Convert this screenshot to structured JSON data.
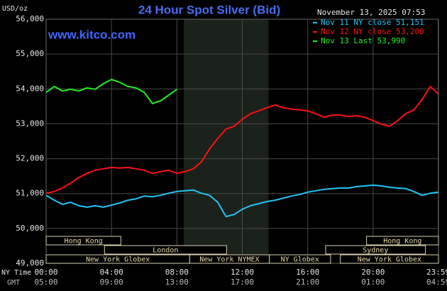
{
  "chart_data": {
    "type": "line",
    "title": "24 Hour Spot Silver (Bid)",
    "timestamp": "November 13, 2025 07:53",
    "watermark": "www.kitco.com",
    "y_label": "USD/oz",
    "x_row_labels": [
      "NY Time",
      "GMT"
    ],
    "xlim": [
      0,
      24
    ],
    "xticks": [
      {
        "value": 0,
        "label": "00:00"
      },
      {
        "value": 4,
        "label": "04:00"
      },
      {
        "value": 8,
        "label": "08:00"
      },
      {
        "value": 12,
        "label": "12:00"
      },
      {
        "value": 16,
        "label": "16:00"
      },
      {
        "value": 20,
        "label": "20:00"
      },
      {
        "value": 23.983,
        "label": "23:59"
      }
    ],
    "gmt_labels": [
      "05:00",
      "09:00",
      "13:00",
      "17:00",
      "21:00",
      "01:00",
      "04:59"
    ],
    "ylim": [
      49000,
      56000
    ],
    "yticks": [
      {
        "value": 49000,
        "label": "49,000"
      },
      {
        "value": 50000,
        "label": "50,000"
      },
      {
        "value": 51000,
        "label": "51,000"
      },
      {
        "value": 52000,
        "label": "52,000"
      },
      {
        "value": 53000,
        "label": "53,000"
      },
      {
        "value": 54000,
        "label": "54,000"
      },
      {
        "value": 55000,
        "label": "55,000"
      },
      {
        "value": 56000,
        "label": "56,000"
      }
    ],
    "grid": true,
    "shaded_region": [
      8.42,
      13.6
    ],
    "sessions": [
      {
        "name": "Hong Kong",
        "start": 0,
        "end": 4.57,
        "row": 0
      },
      {
        "name": "Hong Kong",
        "start": 19.6,
        "end": 24,
        "row": 0
      },
      {
        "name": "London",
        "start": 3.57,
        "end": 11.04,
        "row": 1
      },
      {
        "name": "Sydney",
        "start": 17.1,
        "end": 23.2,
        "row": 1
      },
      {
        "name": "New York Globex",
        "start": 0,
        "end": 8.78,
        "row": 2
      },
      {
        "name": "New York NYMEX",
        "start": 8.78,
        "end": 13.65,
        "row": 2
      },
      {
        "name": "NY Globex",
        "start": 13.65,
        "end": 17.4,
        "row": 2
      },
      {
        "name": "New York Globex",
        "start": 18,
        "end": 24,
        "row": 2
      }
    ],
    "x": [
      0,
      0.5,
      1,
      1.5,
      2,
      2.5,
      3,
      3.5,
      4,
      4.5,
      5,
      5.5,
      6,
      6.5,
      7,
      7.5,
      8,
      8.5,
      9,
      9.5,
      10,
      10.5,
      11,
      11.5,
      12,
      12.5,
      13,
      13.5,
      14,
      14.5,
      15,
      15.5,
      16,
      16.5,
      17,
      17.5,
      18,
      18.5,
      19,
      19.5,
      20,
      20.5,
      21,
      21.5,
      22,
      22.5,
      23,
      23.5,
      23.983
    ],
    "series": [
      {
        "name": "Nov 11 NY close 51,151",
        "color": "#22c4f4",
        "values": [
          50950,
          50810,
          50690,
          50750,
          50650,
          50610,
          50650,
          50610,
          50670,
          50730,
          50810,
          50850,
          50930,
          50910,
          50950,
          51010,
          51060,
          51080,
          51100,
          51010,
          50950,
          50750,
          50340,
          50400,
          50550,
          50650,
          50710,
          50770,
          50810,
          50870,
          50930,
          50970,
          51040,
          51080,
          51120,
          51140,
          51160,
          51160,
          51200,
          51220,
          51240,
          51220,
          51180,
          51160,
          51140,
          51060,
          50950,
          51010,
          51040
        ]
      },
      {
        "name": "Nov 12 NY close 53,200",
        "color": "#ff1010",
        "values": [
          51010,
          51060,
          51160,
          51300,
          51460,
          51580,
          51670,
          51710,
          51750,
          51730,
          51750,
          51710,
          51670,
          51580,
          51630,
          51670,
          51580,
          51630,
          51710,
          51910,
          52280,
          52580,
          52850,
          52930,
          53130,
          53290,
          53370,
          53460,
          53540,
          53460,
          53420,
          53400,
          53370,
          53290,
          53190,
          53250,
          53250,
          53210,
          53230,
          53190,
          53090,
          52990,
          52930,
          53090,
          53290,
          53400,
          53700,
          54070,
          53860
        ]
      },
      {
        "name": "Nov 13 Last 53,990",
        "color": "#22ee22",
        "x": [
          0,
          0.5,
          1,
          1.5,
          2,
          2.5,
          3,
          3.5,
          4,
          4.5,
          5,
          5.5,
          6,
          6.5,
          7,
          7.5,
          8
        ],
        "values": [
          53900,
          54070,
          53940,
          53990,
          53940,
          54030,
          53990,
          54150,
          54270,
          54190,
          54070,
          54030,
          53900,
          53580,
          53660,
          53820,
          53990
        ]
      }
    ]
  }
}
